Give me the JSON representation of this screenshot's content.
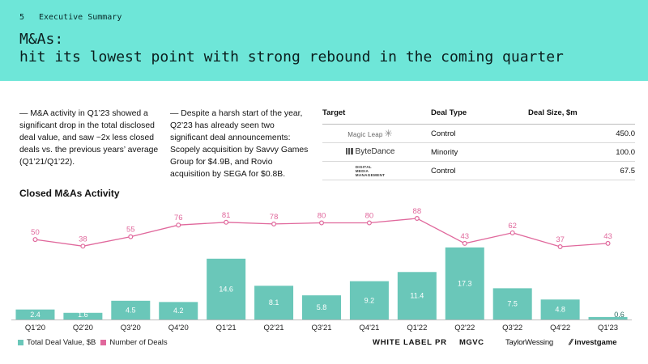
{
  "header": {
    "page_number": "5",
    "section": "Executive Summary",
    "title": "M&As:\nhit its lowest point with strong rebound in the coming quarter",
    "color": "#6ee6d8"
  },
  "paragraphs": {
    "left": "— M&A activity in Q1’23 showed a significant drop in the total disclosed deal value, and saw ~2x less closed deals vs. the previous years’ average (Q1’21/Q1’22).",
    "right": "— Despite a harsh start of the year, Q2’23 has already seen two significant deal announcements: Scopely acquisition by Savvy Games Group for $4.9B, and Rovio acquisition by SEGA for $0.8B."
  },
  "deals_table": {
    "headers": {
      "target": "Target",
      "deal_type": "Deal Type",
      "deal_size": "Deal Size, $m"
    },
    "rows": [
      {
        "target_logo": "Magic Leap",
        "deal_type": "Control",
        "deal_size": "450.0"
      },
      {
        "target_logo": "ByteDance",
        "deal_type": "Minority",
        "deal_size": "100.0"
      },
      {
        "target_logo": "DIGITAL MEDIA MANAGEMENT",
        "deal_type": "Control",
        "deal_size": "67.5"
      }
    ]
  },
  "chart_data": {
    "type": "bar",
    "title": "Closed M&As Activity",
    "categories": [
      "Q1'20",
      "Q2'20",
      "Q3'20",
      "Q4'20",
      "Q1'21",
      "Q2'21",
      "Q3'21",
      "Q4'21",
      "Q1'22",
      "Q2'22",
      "Q3'22",
      "Q4'22",
      "Q1'23"
    ],
    "series": [
      {
        "name": "Total Deal Value, $B",
        "kind": "bar",
        "color": "#6ac7b9",
        "values": [
          2.4,
          1.6,
          4.5,
          4.2,
          14.6,
          8.1,
          5.8,
          9.2,
          11.4,
          17.3,
          7.5,
          4.8,
          0.6
        ]
      },
      {
        "name": "Number of Deals",
        "kind": "line",
        "color": "#e0689c",
        "values": [
          50,
          38,
          55,
          76,
          81,
          78,
          80,
          80,
          88,
          43,
          62,
          37,
          43
        ]
      }
    ],
    "legend": "bottom-left",
    "grid": false
  },
  "footer_logos": {
    "white_label_pr": "WHITE LABEL PR",
    "mgvc": "MGVC",
    "taylor_wessing": "TaylorWessing",
    "investgame": "investgame"
  }
}
